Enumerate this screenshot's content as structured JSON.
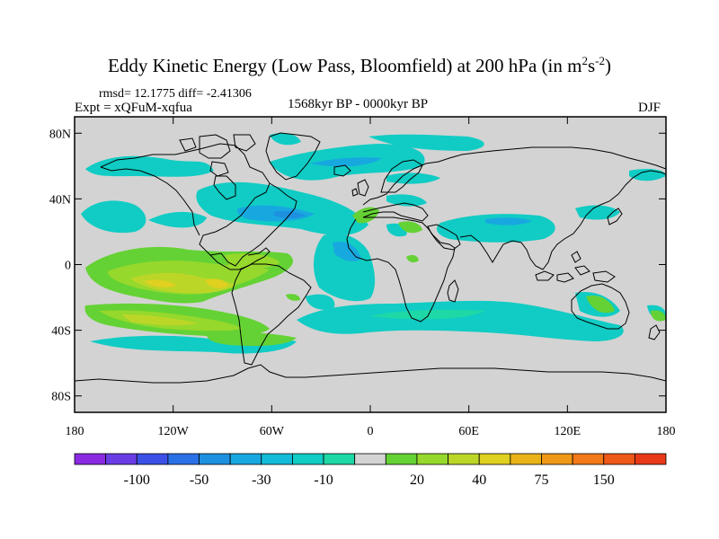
{
  "title": {
    "prefix": "Eddy Kinetic Energy (Low Pass, Bloomfield) at 200 hPa (in m",
    "sup1": "2",
    "mid": "s",
    "sup2": "-2",
    "suffix": ")"
  },
  "stats": "rmsd= 12.1775  diff= -2.41306",
  "experiment": "Expt = xQFuM-xqfua",
  "period": "1568kyr BP - 0000kyr BP",
  "season": "DJF",
  "colors": {
    "background": "#d3d3d3",
    "coast": "#000000",
    "levels": [
      "#8a2be2",
      "#6a3ce6",
      "#3a50e6",
      "#2a70e6",
      "#1e90e0",
      "#18a8e0",
      "#12bcd8",
      "#10ccc4",
      "#1ed8a6",
      "#d3d3d3",
      "#64d234",
      "#96d82c",
      "#bcd628",
      "#e0d020",
      "#eab418",
      "#f09818",
      "#f27818",
      "#ee5818",
      "#e83a18"
    ]
  },
  "chart_data": {
    "type": "heatmap",
    "projection": "cylindrical-equidistant",
    "x_ticks": [
      "180",
      "120W",
      "60W",
      "0",
      "60E",
      "120E",
      "180"
    ],
    "y_ticks": [
      "80N",
      "40N",
      "0",
      "40S",
      "80S"
    ],
    "x_range": [
      -180,
      180
    ],
    "y_range": [
      -90,
      90
    ],
    "colorbar_labels": [
      "-100",
      "-50",
      "-30",
      "-10",
      "20",
      "40",
      "75",
      "150"
    ],
    "anomaly_regions": [
      {
        "label": "N Pacific north",
        "sign": "negative",
        "lon": -150,
        "lat": 60
      },
      {
        "label": "N Pacific storm track",
        "sign": "negative",
        "lon": -155,
        "lat": 35
      },
      {
        "label": "North America / N Atlantic",
        "sign": "negative",
        "lon": -50,
        "lat": 35
      },
      {
        "label": "North Atlantic",
        "sign": "negative",
        "lon": -10,
        "lat": 60
      },
      {
        "label": "Asian jet",
        "sign": "negative",
        "lon": 80,
        "lat": 35
      },
      {
        "label": "Tropical Atlantic",
        "sign": "negative",
        "lon": -15,
        "lat": 0
      },
      {
        "label": "Southern Ocean",
        "sign": "negative",
        "lon": 40,
        "lat": -38
      },
      {
        "label": "Eastern Tropical Pacific",
        "sign": "positive",
        "lon": -110,
        "lat": -5
      },
      {
        "label": "South Pacific",
        "sign": "positive",
        "lon": -130,
        "lat": -40
      },
      {
        "label": "Mediterranean",
        "sign": "positive",
        "lon": 5,
        "lat": 40
      }
    ]
  }
}
